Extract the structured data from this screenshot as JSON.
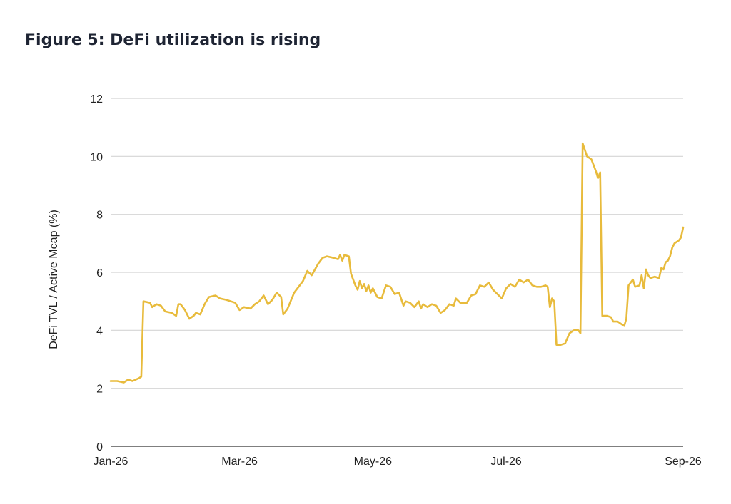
{
  "figure": {
    "title": "Figure 5: DeFi utilization is rising"
  },
  "colors": {
    "line": "#e8bb3c",
    "grid": "#d4d4d4",
    "axis": "#333333",
    "text": "#222222"
  },
  "chart_data": {
    "type": "line",
    "title": "Figure 5: DeFi utilization is rising",
    "xlabel": "",
    "ylabel": "DeFi TVL / Active Mcap (%)",
    "ylim": [
      0,
      12
    ],
    "yticks": [
      0,
      2,
      4,
      6,
      8,
      10,
      12
    ],
    "xlim": [
      "2026-01-01",
      "2026-09-20"
    ],
    "xticks": [
      {
        "label": "Jan-26",
        "date": "2026-01-01"
      },
      {
        "label": "Mar-26",
        "date": "2026-03-01"
      },
      {
        "label": "May-26",
        "date": "2026-05-01"
      },
      {
        "label": "Jul-26",
        "date": "2026-07-01"
      },
      {
        "label": "Sep-26",
        "date": "2026-09-20"
      }
    ],
    "grid": true,
    "legend": "none",
    "series": [
      {
        "points": [
          [
            "2026-01-01",
            2.25
          ],
          [
            "2026-01-04",
            2.25
          ],
          [
            "2026-01-07",
            2.2
          ],
          [
            "2026-01-09",
            2.3
          ],
          [
            "2026-01-11",
            2.25
          ],
          [
            "2026-01-14",
            2.35
          ],
          [
            "2026-01-15",
            2.4
          ],
          [
            "2026-01-16",
            5.0
          ],
          [
            "2026-01-19",
            4.95
          ],
          [
            "2026-01-20",
            4.8
          ],
          [
            "2026-01-22",
            4.9
          ],
          [
            "2026-01-24",
            4.85
          ],
          [
            "2026-01-26",
            4.65
          ],
          [
            "2026-01-29",
            4.6
          ],
          [
            "2026-01-31",
            4.5
          ],
          [
            "2026-02-01",
            4.9
          ],
          [
            "2026-02-02",
            4.9
          ],
          [
            "2026-02-04",
            4.7
          ],
          [
            "2026-02-06",
            4.4
          ],
          [
            "2026-02-08",
            4.5
          ],
          [
            "2026-02-09",
            4.6
          ],
          [
            "2026-02-11",
            4.55
          ],
          [
            "2026-02-13",
            4.9
          ],
          [
            "2026-02-15",
            5.15
          ],
          [
            "2026-02-18",
            5.2
          ],
          [
            "2026-02-20",
            5.1
          ],
          [
            "2026-02-23",
            5.05
          ],
          [
            "2026-02-25",
            5.0
          ],
          [
            "2026-02-27",
            4.95
          ],
          [
            "2026-03-01",
            4.7
          ],
          [
            "2026-03-03",
            4.8
          ],
          [
            "2026-03-06",
            4.75
          ],
          [
            "2026-03-08",
            4.9
          ],
          [
            "2026-03-10",
            5.0
          ],
          [
            "2026-03-12",
            5.2
          ],
          [
            "2026-03-14",
            4.9
          ],
          [
            "2026-03-16",
            5.05
          ],
          [
            "2026-03-18",
            5.3
          ],
          [
            "2026-03-20",
            5.15
          ],
          [
            "2026-03-21",
            4.55
          ],
          [
            "2026-03-23",
            4.75
          ],
          [
            "2026-03-26",
            5.3
          ],
          [
            "2026-03-28",
            5.5
          ],
          [
            "2026-03-30",
            5.7
          ],
          [
            "2026-04-01",
            6.05
          ],
          [
            "2026-04-03",
            5.9
          ],
          [
            "2026-04-06",
            6.3
          ],
          [
            "2026-04-08",
            6.5
          ],
          [
            "2026-04-10",
            6.55
          ],
          [
            "2026-04-13",
            6.5
          ],
          [
            "2026-04-15",
            6.45
          ],
          [
            "2026-04-16",
            6.6
          ],
          [
            "2026-04-17",
            6.4
          ],
          [
            "2026-04-18",
            6.6
          ],
          [
            "2026-04-20",
            6.55
          ],
          [
            "2026-04-21",
            5.95
          ],
          [
            "2026-04-23",
            5.55
          ],
          [
            "2026-04-24",
            5.4
          ],
          [
            "2026-04-25",
            5.7
          ],
          [
            "2026-04-26",
            5.45
          ],
          [
            "2026-04-27",
            5.6
          ],
          [
            "2026-04-28",
            5.35
          ],
          [
            "2026-04-29",
            5.55
          ],
          [
            "2026-04-30",
            5.3
          ],
          [
            "2026-05-01",
            5.45
          ],
          [
            "2026-05-03",
            5.15
          ],
          [
            "2026-05-05",
            5.1
          ],
          [
            "2026-05-07",
            5.55
          ],
          [
            "2026-05-09",
            5.5
          ],
          [
            "2026-05-11",
            5.25
          ],
          [
            "2026-05-13",
            5.3
          ],
          [
            "2026-05-15",
            4.85
          ],
          [
            "2026-05-16",
            5.0
          ],
          [
            "2026-05-18",
            4.95
          ],
          [
            "2026-05-20",
            4.8
          ],
          [
            "2026-05-22",
            5.0
          ],
          [
            "2026-05-23",
            4.75
          ],
          [
            "2026-05-24",
            4.9
          ],
          [
            "2026-05-26",
            4.8
          ],
          [
            "2026-05-28",
            4.9
          ],
          [
            "2026-05-30",
            4.85
          ],
          [
            "2026-06-01",
            4.6
          ],
          [
            "2026-06-03",
            4.7
          ],
          [
            "2026-06-05",
            4.9
          ],
          [
            "2026-06-07",
            4.85
          ],
          [
            "2026-06-08",
            5.1
          ],
          [
            "2026-06-10",
            4.95
          ],
          [
            "2026-06-13",
            4.95
          ],
          [
            "2026-06-15",
            5.2
          ],
          [
            "2026-06-17",
            5.25
          ],
          [
            "2026-06-19",
            5.55
          ],
          [
            "2026-06-21",
            5.5
          ],
          [
            "2026-06-23",
            5.65
          ],
          [
            "2026-06-25",
            5.4
          ],
          [
            "2026-06-27",
            5.25
          ],
          [
            "2026-06-29",
            5.1
          ],
          [
            "2026-07-01",
            5.45
          ],
          [
            "2026-07-03",
            5.6
          ],
          [
            "2026-07-05",
            5.5
          ],
          [
            "2026-07-07",
            5.75
          ],
          [
            "2026-07-09",
            5.65
          ],
          [
            "2026-07-11",
            5.75
          ],
          [
            "2026-07-13",
            5.55
          ],
          [
            "2026-07-15",
            5.5
          ],
          [
            "2026-07-17",
            5.5
          ],
          [
            "2026-07-19",
            5.55
          ],
          [
            "2026-07-20",
            5.5
          ],
          [
            "2026-07-21",
            4.8
          ],
          [
            "2026-07-22",
            5.1
          ],
          [
            "2026-07-23",
            5.0
          ],
          [
            "2026-07-24",
            3.5
          ],
          [
            "2026-07-26",
            3.5
          ],
          [
            "2026-07-28",
            3.55
          ],
          [
            "2026-07-30",
            3.9
          ],
          [
            "2026-08-01",
            4.0
          ],
          [
            "2026-08-03",
            4.0
          ],
          [
            "2026-08-04",
            3.9
          ],
          [
            "2026-08-05",
            10.45
          ],
          [
            "2026-08-07",
            10.0
          ],
          [
            "2026-08-09",
            9.9
          ],
          [
            "2026-08-11",
            9.5
          ],
          [
            "2026-08-12",
            9.25
          ],
          [
            "2026-08-13",
            9.45
          ],
          [
            "2026-08-14",
            4.5
          ],
          [
            "2026-08-16",
            4.5
          ],
          [
            "2026-08-18",
            4.45
          ],
          [
            "2026-08-19",
            4.3
          ],
          [
            "2026-08-21",
            4.3
          ],
          [
            "2026-08-23",
            4.2
          ],
          [
            "2026-08-24",
            4.15
          ],
          [
            "2026-08-25",
            4.4
          ],
          [
            "2026-08-26",
            5.55
          ],
          [
            "2026-08-28",
            5.75
          ],
          [
            "2026-08-29",
            5.5
          ],
          [
            "2026-08-31",
            5.55
          ],
          [
            "2026-09-01",
            5.9
          ],
          [
            "2026-09-02",
            5.45
          ],
          [
            "2026-09-03",
            6.1
          ],
          [
            "2026-09-04",
            5.9
          ],
          [
            "2026-09-05",
            5.8
          ],
          [
            "2026-09-07",
            5.85
          ],
          [
            "2026-09-09",
            5.8
          ],
          [
            "2026-09-10",
            6.15
          ],
          [
            "2026-09-11",
            6.1
          ],
          [
            "2026-09-12",
            6.35
          ],
          [
            "2026-09-13",
            6.4
          ],
          [
            "2026-09-14",
            6.55
          ],
          [
            "2026-09-15",
            6.85
          ],
          [
            "2026-09-16",
            7.0
          ],
          [
            "2026-09-17",
            7.05
          ],
          [
            "2026-09-18",
            7.1
          ],
          [
            "2026-09-19",
            7.2
          ],
          [
            "2026-09-20",
            7.55
          ]
        ]
      }
    ]
  }
}
